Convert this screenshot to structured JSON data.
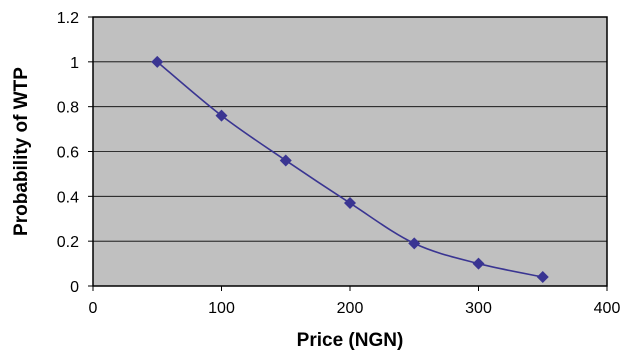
{
  "chart_data": {
    "type": "line",
    "title": "",
    "xlabel": "Price (NGN)",
    "ylabel": "Probability of WTP",
    "xlim": [
      0,
      400
    ],
    "ylim": [
      0,
      1.2
    ],
    "x_ticks": [
      0,
      100,
      200,
      300,
      400
    ],
    "x_tick_labels": [
      "0",
      "100",
      "200",
      "300",
      "400"
    ],
    "y_ticks": [
      0,
      0.2,
      0.4,
      0.6,
      0.8,
      1.0,
      1.2
    ],
    "y_tick_labels": [
      "0",
      "0.2",
      "0.4",
      "0.6",
      "0.8",
      "1",
      "1.2"
    ],
    "grid": true,
    "legend": "none",
    "series": [
      {
        "x": [
          50,
          100,
          150,
          200,
          250,
          300,
          350
        ],
        "y": [
          1.0,
          0.76,
          0.56,
          0.37,
          0.19,
          0.1,
          0.04
        ]
      }
    ],
    "colors": {
      "plot_background": "#c0c0c0",
      "line": "#3a3592",
      "marker": "#3a3592",
      "gridline": "#000000"
    }
  }
}
